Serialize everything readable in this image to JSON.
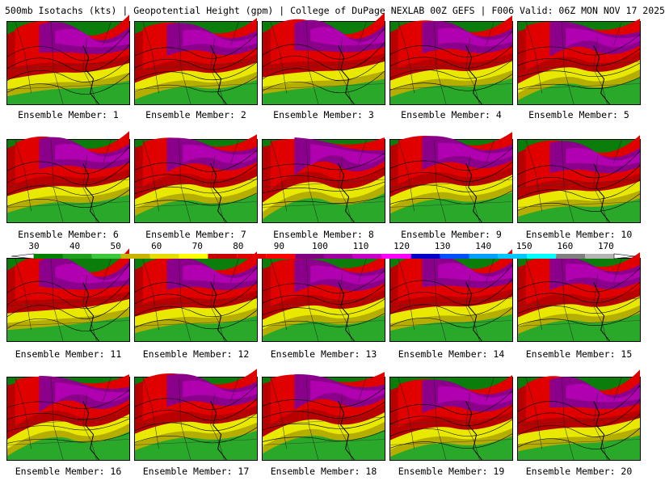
{
  "header": {
    "title": "500mb Isotachs (kts) | Geopotential Height (gpm) | College of DuPage NEXLAB   00Z GEFS | F006 Valid: 06Z MON NOV 17 2025"
  },
  "member_label_prefix": "Ensemble Member:",
  "members": [
    "1",
    "2",
    "3",
    "4",
    "5",
    "6",
    "7",
    "8",
    "9",
    "10",
    "11",
    "12",
    "13",
    "14",
    "15",
    "16",
    "17",
    "18",
    "19",
    "20"
  ],
  "colorbar": {
    "labels": [
      "30",
      "40",
      "50",
      "60",
      "70",
      "80",
      "90",
      "100",
      "110",
      "120",
      "130",
      "140",
      "150",
      "160",
      "170"
    ],
    "colors": [
      "#008000",
      "#1ea01e",
      "#3cc83c",
      "#c8b400",
      "#e6dc00",
      "#ffff00",
      "#c80000",
      "#e00000",
      "#ff0000",
      "#800080",
      "#a000a0",
      "#c800c8",
      "#ff00ff",
      "#0000c8",
      "#0050ff",
      "#00a0ff",
      "#00c8ff",
      "#00ffff",
      "#808080",
      "#b4b4b4"
    ]
  },
  "map_colors": {
    "green_dark": "#0a7d0a",
    "green": "#29a829",
    "green_light": "#4bd04b",
    "olive": "#b5ad00",
    "yellow": "#e8e800",
    "red_dark": "#b80000",
    "red": "#e00000",
    "purple": "#8a008a",
    "magenta": "#b000b0"
  }
}
